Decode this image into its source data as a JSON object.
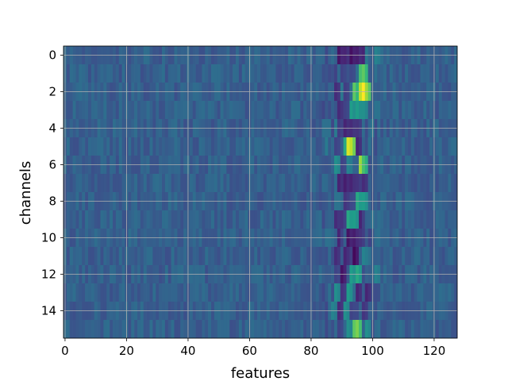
{
  "chart_data": {
    "type": "heatmap",
    "title": "",
    "xlabel": "features",
    "ylabel": "channels",
    "x_range": [
      -0.5,
      127.5
    ],
    "y_range": [
      15.5,
      -0.5
    ],
    "x_ticks": [
      0,
      20,
      40,
      60,
      80,
      100,
      120
    ],
    "y_ticks": [
      0,
      2,
      4,
      6,
      8,
      10,
      12,
      14
    ],
    "n_channels": 16,
    "n_features": 128,
    "grid": true,
    "colormap": "viridis",
    "value_range": [
      0,
      1
    ],
    "background_level": 0.3,
    "features": [
      {
        "channel": 0,
        "x": 89,
        "v": 0.06
      },
      {
        "channel": 0,
        "x": 91,
        "v": 0.1
      },
      {
        "channel": 0,
        "x": 93,
        "v": 0.04
      },
      {
        "channel": 0,
        "x": 95,
        "v": 0.08
      },
      {
        "channel": 0,
        "x": 97,
        "v": 0.1
      },
      {
        "channel": 0,
        "x": 101,
        "v": 0.45
      },
      {
        "channel": 1,
        "x": 96,
        "v": 0.7
      },
      {
        "channel": 1,
        "x": 97,
        "v": 0.75
      },
      {
        "channel": 1,
        "x": 93,
        "v": 0.22
      },
      {
        "channel": 1,
        "x": 90,
        "v": 0.2
      },
      {
        "channel": 2,
        "x": 94,
        "v": 0.75
      },
      {
        "channel": 2,
        "x": 96,
        "v": 0.9
      },
      {
        "channel": 2,
        "x": 97,
        "v": 1.0
      },
      {
        "channel": 2,
        "x": 98,
        "v": 0.85
      },
      {
        "channel": 2,
        "x": 91,
        "v": 0.18
      },
      {
        "channel": 2,
        "x": 88,
        "v": 0.12
      },
      {
        "channel": 3,
        "x": 89,
        "v": 0.12
      },
      {
        "channel": 3,
        "x": 91,
        "v": 0.2
      },
      {
        "channel": 3,
        "x": 93,
        "v": 0.55
      },
      {
        "channel": 3,
        "x": 95,
        "v": 0.55
      },
      {
        "channel": 3,
        "x": 97,
        "v": 0.5
      },
      {
        "channel": 4,
        "x": 89,
        "v": 0.18
      },
      {
        "channel": 4,
        "x": 91,
        "v": 0.1
      },
      {
        "channel": 4,
        "x": 93,
        "v": 0.12
      },
      {
        "channel": 4,
        "x": 95,
        "v": 0.15
      },
      {
        "channel": 5,
        "x": 91,
        "v": 0.6
      },
      {
        "channel": 5,
        "x": 92,
        "v": 0.95
      },
      {
        "channel": 5,
        "x": 93,
        "v": 0.9
      },
      {
        "channel": 5,
        "x": 95,
        "v": 0.1
      },
      {
        "channel": 5,
        "x": 88,
        "v": 0.2
      },
      {
        "channel": 6,
        "x": 88,
        "v": 0.5
      },
      {
        "channel": 6,
        "x": 90,
        "v": 0.2
      },
      {
        "channel": 6,
        "x": 92,
        "v": 0.45
      },
      {
        "channel": 6,
        "x": 96,
        "v": 0.85
      },
      {
        "channel": 6,
        "x": 97,
        "v": 0.7
      },
      {
        "channel": 7,
        "x": 89,
        "v": 0.1
      },
      {
        "channel": 7,
        "x": 91,
        "v": 0.08
      },
      {
        "channel": 7,
        "x": 93,
        "v": 0.1
      },
      {
        "channel": 7,
        "x": 95,
        "v": 0.15
      },
      {
        "channel": 7,
        "x": 97,
        "v": 0.12
      },
      {
        "channel": 8,
        "x": 91,
        "v": 0.15
      },
      {
        "channel": 8,
        "x": 93,
        "v": 0.22
      },
      {
        "channel": 8,
        "x": 95,
        "v": 0.6
      },
      {
        "channel": 8,
        "x": 97,
        "v": 0.55
      },
      {
        "channel": 9,
        "x": 88,
        "v": 0.12
      },
      {
        "channel": 9,
        "x": 90,
        "v": 0.15
      },
      {
        "channel": 9,
        "x": 92,
        "v": 0.6
      },
      {
        "channel": 9,
        "x": 94,
        "v": 0.55
      },
      {
        "channel": 9,
        "x": 96,
        "v": 0.1
      },
      {
        "channel": 10,
        "x": 89,
        "v": 0.1
      },
      {
        "channel": 10,
        "x": 92,
        "v": 0.05
      },
      {
        "channel": 10,
        "x": 94,
        "v": 0.08
      },
      {
        "channel": 10,
        "x": 96,
        "v": 0.15
      },
      {
        "channel": 11,
        "x": 88,
        "v": 0.12
      },
      {
        "channel": 11,
        "x": 91,
        "v": 0.1
      },
      {
        "channel": 11,
        "x": 94,
        "v": 0.02
      },
      {
        "channel": 11,
        "x": 97,
        "v": 0.45
      },
      {
        "channel": 11,
        "x": 100,
        "v": 0.3
      },
      {
        "channel": 12,
        "x": 88,
        "v": 0.2
      },
      {
        "channel": 12,
        "x": 90,
        "v": 0.05
      },
      {
        "channel": 12,
        "x": 93,
        "v": 0.55
      },
      {
        "channel": 12,
        "x": 95,
        "v": 0.6
      },
      {
        "channel": 12,
        "x": 101,
        "v": 0.45
      },
      {
        "channel": 13,
        "x": 88,
        "v": 0.5
      },
      {
        "channel": 13,
        "x": 90,
        "v": 0.15
      },
      {
        "channel": 13,
        "x": 92,
        "v": 0.55
      },
      {
        "channel": 13,
        "x": 95,
        "v": 0.1
      },
      {
        "channel": 13,
        "x": 98,
        "v": 0.1
      },
      {
        "channel": 14,
        "x": 87,
        "v": 0.45
      },
      {
        "channel": 14,
        "x": 89,
        "v": 0.12
      },
      {
        "channel": 14,
        "x": 91,
        "v": 0.5
      },
      {
        "channel": 14,
        "x": 93,
        "v": 0.2
      },
      {
        "channel": 14,
        "x": 97,
        "v": 0.15
      },
      {
        "channel": 15,
        "x": 89,
        "v": 0.2
      },
      {
        "channel": 15,
        "x": 92,
        "v": 0.5
      },
      {
        "channel": 15,
        "x": 94,
        "v": 0.75
      },
      {
        "channel": 15,
        "x": 95,
        "v": 0.8
      },
      {
        "channel": 15,
        "x": 98,
        "v": 0.5
      }
    ],
    "colors": {
      "background": "#ffffff",
      "grid": "#b0b0b0",
      "axis": "#000000"
    }
  }
}
